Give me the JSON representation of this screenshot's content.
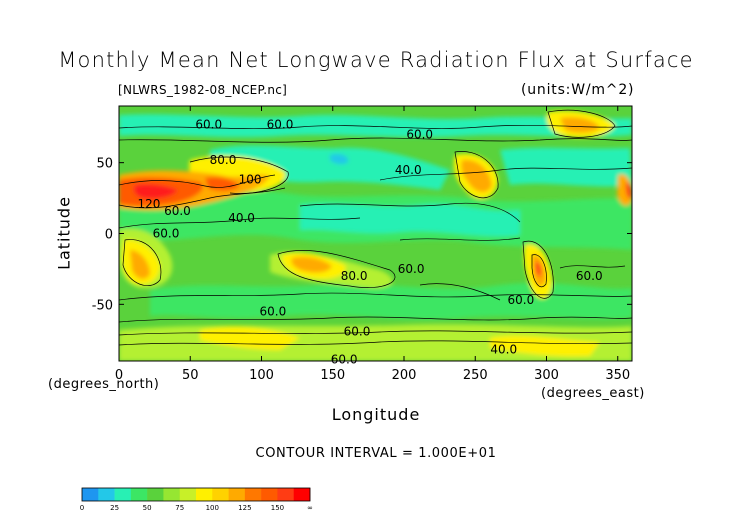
{
  "title": "Monthly Mean Net Longwave Radiation Flux at Surface",
  "source_file": "[NLWRS_1982-08_NCEP.nc]",
  "units": "(units:W/m^2)",
  "contour_interval": "CONTOUR INTERVAL = 1.000E+01",
  "colors": {
    "bg_green": "#5ad23c",
    "mid_green": "#3ce664",
    "light_green": "#28f0b4",
    "cyan": "#2ad8e6",
    "yellow_green": "#b4f032",
    "yellow": "#fff000",
    "orange": "#ffaa00",
    "red_orange": "#ff5a00",
    "red": "#ff1e1e"
  },
  "chart_data": {
    "type": "heatmap",
    "title": "Monthly Mean Net Longwave Radiation Flux at Surface",
    "xlabel": "Longitude",
    "ylabel": "Latitude",
    "x_units": "(degrees_east)",
    "y_units": "(degrees_north)",
    "xlim": [
      0,
      360
    ],
    "ylim": [
      -90,
      90
    ],
    "x_ticks": [
      0,
      50,
      100,
      150,
      200,
      250,
      300,
      350
    ],
    "y_ticks": [
      50,
      0,
      -50
    ],
    "colorbar": {
      "levels": [
        "0",
        "25",
        "50",
        "75",
        "100",
        "125",
        "150",
        "∞"
      ],
      "colors": [
        "#1e96f0",
        "#23c8e8",
        "#28f0b4",
        "#3ce664",
        "#5ad23c",
        "#96e632",
        "#c8f028",
        "#fff000",
        "#ffd200",
        "#ffaa00",
        "#ff7800",
        "#ff5a00",
        "#ff3c14",
        "#ff0000"
      ]
    },
    "contour_labels": [
      {
        "text": "60.0",
        "lon": 63,
        "lat": 77
      },
      {
        "text": "60.0",
        "lon": 113,
        "lat": 77
      },
      {
        "text": "60.0",
        "lon": 211,
        "lat": 70
      },
      {
        "text": "40.0",
        "lon": 203,
        "lat": 45
      },
      {
        "text": "80.0",
        "lon": 73,
        "lat": 52
      },
      {
        "text": "100",
        "lon": 92,
        "lat": 38
      },
      {
        "text": "120",
        "lon": 21,
        "lat": 21
      },
      {
        "text": "60.0",
        "lon": 41,
        "lat": 16
      },
      {
        "text": "40.0",
        "lon": 86,
        "lat": 11
      },
      {
        "text": "60.0",
        "lon": 33,
        "lat": 0
      },
      {
        "text": "80.0",
        "lon": 165,
        "lat": -30
      },
      {
        "text": "60.0",
        "lon": 205,
        "lat": -25
      },
      {
        "text": "60.0",
        "lon": 330,
        "lat": -30
      },
      {
        "text": "60.0",
        "lon": 282,
        "lat": -47
      },
      {
        "text": "60.0",
        "lon": 108,
        "lat": -55
      },
      {
        "text": "60.0",
        "lon": 167,
        "lat": -69
      },
      {
        "text": "40.0",
        "lon": 270,
        "lat": -82
      },
      {
        "text": "60.0",
        "lon": 158,
        "lat": -89
      }
    ]
  }
}
